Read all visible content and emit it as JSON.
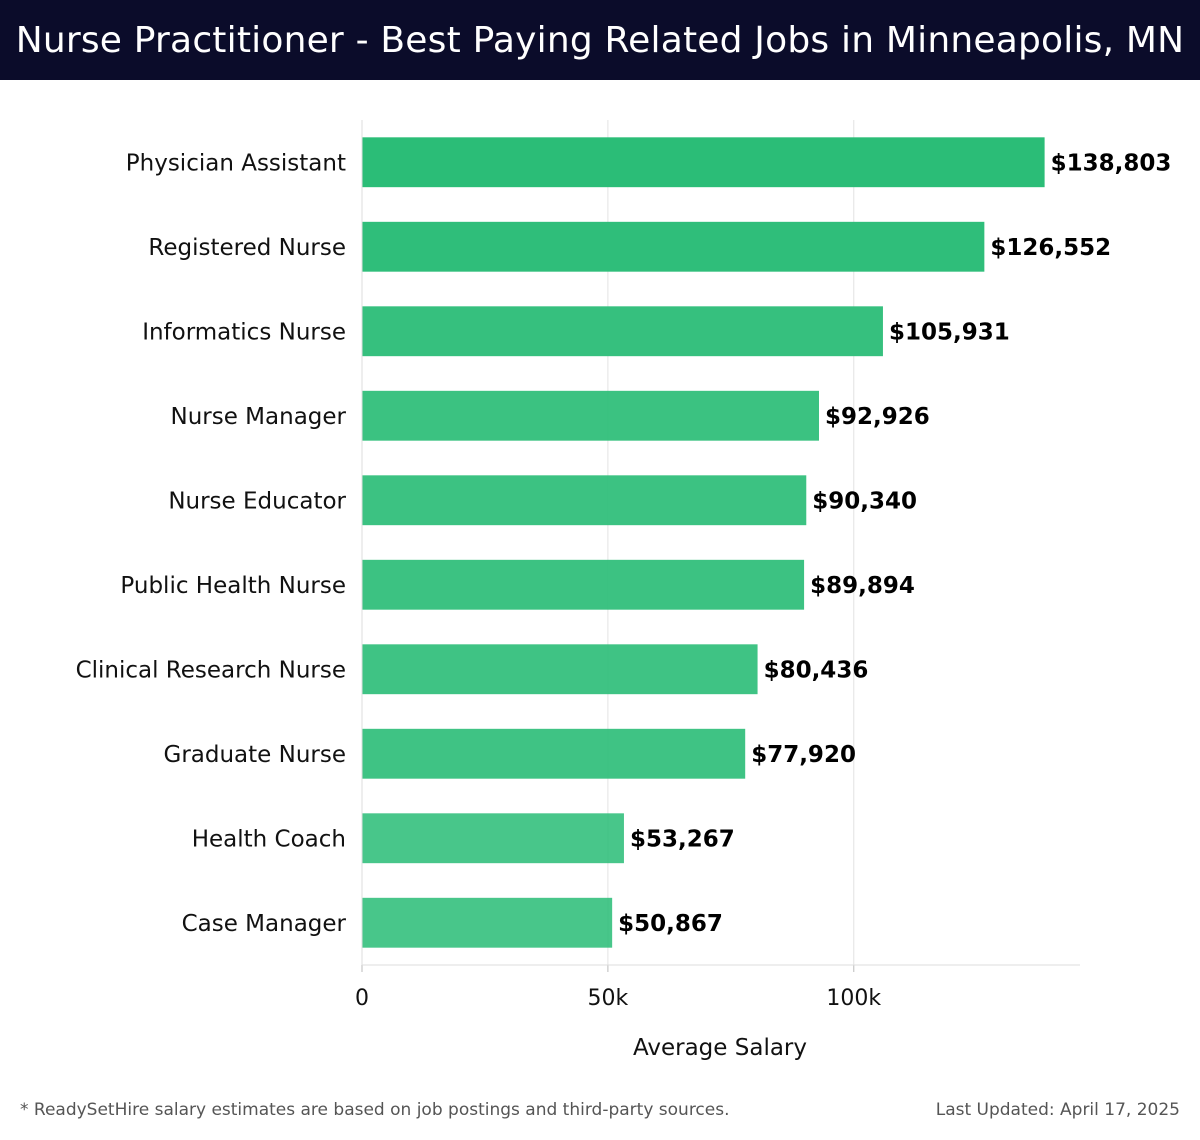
{
  "header": {
    "title": "Nurse Practitioner - Best Paying Related Jobs in Minneapolis, MN"
  },
  "chart_data": {
    "type": "bar",
    "orientation": "horizontal",
    "title": "Nurse Practitioner - Best Paying Related Jobs in Minneapolis, MN",
    "xlabel": "Average Salary",
    "ylabel": "",
    "xlim": [
      0,
      146000
    ],
    "xticks": [
      {
        "value": 0,
        "label": "0"
      },
      {
        "value": 50000,
        "label": "50k"
      },
      {
        "value": 100000,
        "label": "100k"
      }
    ],
    "grid": true,
    "bar_color": "#2bbd77",
    "categories": [
      "Physician Assistant",
      "Registered Nurse",
      "Informatics Nurse",
      "Nurse Manager",
      "Nurse Educator",
      "Public Health Nurse",
      "Clinical Research Nurse",
      "Graduate Nurse",
      "Health Coach",
      "Case Manager"
    ],
    "values": [
      138803,
      126552,
      105931,
      92926,
      90340,
      89894,
      80436,
      77920,
      53267,
      50867
    ],
    "data_labels": [
      "$138,803",
      "$126,552",
      "$105,931",
      "$92,926",
      "$90,340",
      "$89,894",
      "$80,436",
      "$77,920",
      "$53,267",
      "$50,867"
    ]
  },
  "footer": {
    "note": "* ReadySetHire salary estimates are based on job postings and third-party sources.",
    "updated": "Last Updated: April 17, 2025"
  }
}
